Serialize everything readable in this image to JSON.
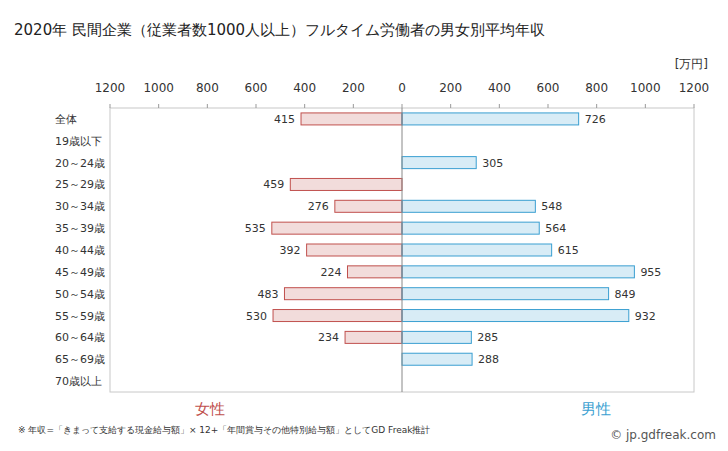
{
  "chart_data": {
    "type": "butterfly",
    "orientation": "horizontal",
    "title": "2020年 民間企業（従業者数1000人以上）フルタイム労働者の男女別平均年収",
    "xlabel": "[万円]",
    "categories": [
      "全体",
      "19歳以下",
      "20～24歳",
      "25～29歳",
      "30～34歳",
      "35～39歳",
      "40～44歳",
      "45～49歳",
      "50～54歳",
      "55～59歳",
      "60～64歳",
      "65～69歳",
      "70歳以上"
    ],
    "series": [
      {
        "name": "女性",
        "color": "#c0504d",
        "values": [
          415,
          null,
          null,
          459,
          276,
          535,
          392,
          224,
          483,
          530,
          234,
          null,
          null
        ]
      },
      {
        "name": "男性",
        "color": "#3a9fd1",
        "values": [
          726,
          null,
          305,
          null,
          548,
          564,
          615,
          955,
          849,
          932,
          285,
          288,
          null
        ]
      }
    ],
    "xlim": [
      0,
      1200
    ],
    "xticks": [
      0,
      200,
      400,
      600,
      800,
      1000,
      1200
    ],
    "data_labels": true,
    "note": "※ 年収=「きまって支給する現金給与額」× 12+「年間賞与その他特別給与額」としてGD Freak推計",
    "source": "© jp.gdfreak.com"
  }
}
